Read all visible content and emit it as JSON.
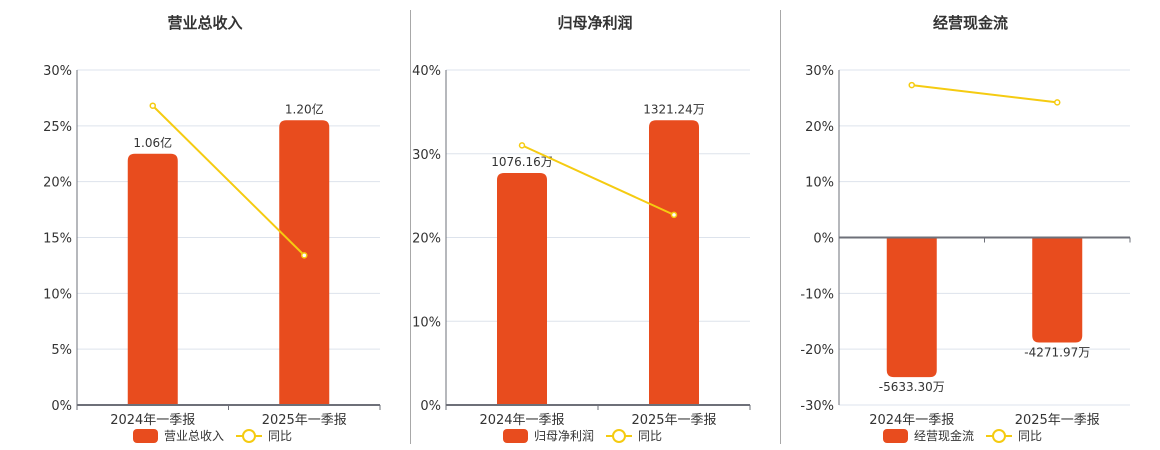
{
  "colors": {
    "bar": "#e84c1e",
    "line": "#f5cb11",
    "grid": "#dde3ec",
    "axis": "#6e7079"
  },
  "charts": [
    {
      "title": "营业总收入",
      "legend": {
        "bar": "营业总收入",
        "line": "同比"
      },
      "y_ticks": [
        "30%",
        "25%",
        "20%",
        "15%",
        "10%",
        "5%",
        "0%"
      ],
      "categories": [
        "2024年一季报",
        "2025年一季报"
      ],
      "bar_labels": [
        "1.06亿",
        "1.20亿"
      ],
      "x_ticks": [
        "2024年一季报",
        "2025年一季报"
      ]
    },
    {
      "title": "归母净利润",
      "legend": {
        "bar": "归母净利润",
        "line": "同比"
      },
      "y_ticks": [
        "40%",
        "30%",
        "20%",
        "10%",
        "0%"
      ],
      "categories": [
        "2024年一季报",
        "2025年一季报"
      ],
      "bar_labels": [
        "1076.16万",
        "1321.24万"
      ],
      "x_ticks": [
        "2024年一季报",
        "2025年一季报"
      ]
    },
    {
      "title": "经营现金流",
      "legend": {
        "bar": "经营现金流",
        "line": "同比"
      },
      "y_ticks": [
        "30%",
        "20%",
        "10%",
        "0%",
        "-10%",
        "-20%",
        "-30%"
      ],
      "categories": [
        "2024年一季报",
        "2025年一季报"
      ],
      "bar_labels": [
        "-5633.30万",
        "-4271.97万"
      ],
      "x_ticks": [
        "2024年一季报",
        "2025年一季报"
      ]
    }
  ],
  "chart_data": [
    {
      "type": "bar",
      "title": "营业总收入",
      "categories": [
        "2024年一季报",
        "2025年一季报"
      ],
      "series": [
        {
          "name": "营业总收入",
          "type": "bar",
          "values": [
            1.06,
            1.2
          ],
          "unit": "亿",
          "labels": [
            "1.06亿",
            "1.20亿"
          ]
        },
        {
          "name": "同比",
          "type": "line",
          "values": [
            26.8,
            13.4
          ],
          "unit": "%"
        }
      ],
      "ylabel": "",
      "xlabel": "",
      "ylim": [
        0,
        30
      ],
      "yticks": [
        0,
        5,
        10,
        15,
        20,
        25,
        30
      ],
      "grid": true,
      "legend_position": "bottom"
    },
    {
      "type": "bar",
      "title": "归母净利润",
      "categories": [
        "2024年一季报",
        "2025年一季报"
      ],
      "series": [
        {
          "name": "归母净利润",
          "type": "bar",
          "values": [
            1076.16,
            1321.24
          ],
          "unit": "万",
          "labels": [
            "1076.16万",
            "1321.24万"
          ]
        },
        {
          "name": "同比",
          "type": "line",
          "values": [
            31.0,
            22.7
          ],
          "unit": "%"
        }
      ],
      "ylabel": "",
      "xlabel": "",
      "ylim": [
        0,
        40
      ],
      "yticks": [
        0,
        10,
        20,
        30,
        40
      ],
      "grid": true,
      "legend_position": "bottom"
    },
    {
      "type": "bar",
      "title": "经营现金流",
      "categories": [
        "2024年一季报",
        "2025年一季报"
      ],
      "series": [
        {
          "name": "经营现金流",
          "type": "bar",
          "values": [
            -5633.3,
            -4271.97
          ],
          "unit": "万",
          "labels": [
            "-5633.30万",
            "-4271.97万"
          ]
        },
        {
          "name": "同比",
          "type": "line",
          "values": [
            27.3,
            24.2
          ],
          "unit": "%"
        }
      ],
      "ylabel": "",
      "xlabel": "",
      "ylim": [
        -30,
        30
      ],
      "yticks": [
        -30,
        -20,
        -10,
        0,
        10,
        20,
        30
      ],
      "grid": true,
      "legend_position": "bottom"
    }
  ]
}
